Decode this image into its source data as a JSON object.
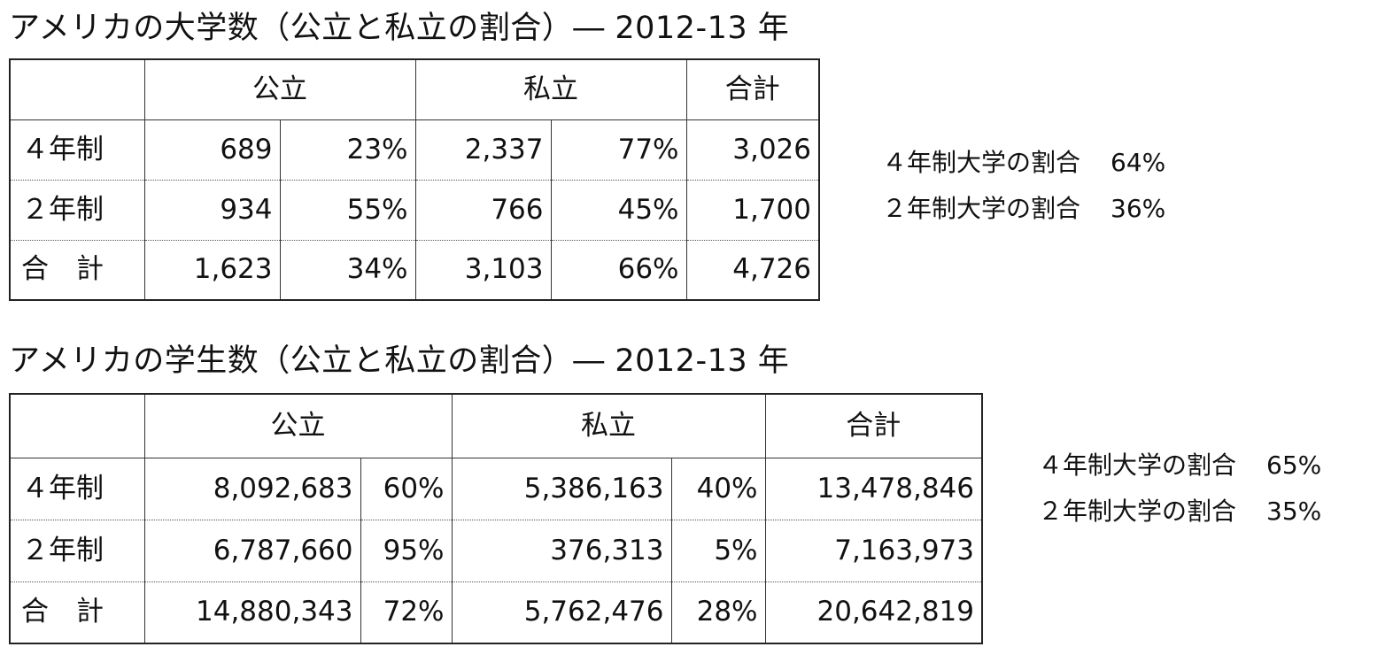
{
  "table1": {
    "title": "アメリカの大学数（公立と私立の割合）― 2012-13 年",
    "headers": {
      "public": "公立",
      "private": "私立",
      "total": "合計"
    },
    "rows": [
      {
        "label": "４年制",
        "public_count": "689",
        "public_pct": "23%",
        "private_count": "2,337",
        "private_pct": "77%",
        "total": "3,026"
      },
      {
        "label": "２年制",
        "public_count": "934",
        "public_pct": "55%",
        "private_count": "766",
        "private_pct": "45%",
        "total": "1,700"
      },
      {
        "label": "合　計",
        "public_count": "1,623",
        "public_pct": "34%",
        "private_count": "3,103",
        "private_pct": "66%",
        "total": "4,726"
      }
    ],
    "side": [
      {
        "label": "４年制大学の割合",
        "value": "64%"
      },
      {
        "label": "２年制大学の割合",
        "value": "36%"
      }
    ]
  },
  "table2": {
    "title": "アメリカの学生数（公立と私立の割合）― 2012-13 年",
    "headers": {
      "public": "公立",
      "private": "私立",
      "total": "合計"
    },
    "rows": [
      {
        "label": "４年制",
        "public_count": "8,092,683",
        "public_pct": "60%",
        "private_count": "5,386,163",
        "private_pct": "40%",
        "total": "13,478,846"
      },
      {
        "label": "２年制",
        "public_count": "6,787,660",
        "public_pct": "95%",
        "private_count": "376,313",
        "private_pct": "5%",
        "total": "7,163,973"
      },
      {
        "label": "合　計",
        "public_count": "14,880,343",
        "public_pct": "72%",
        "private_count": "5,762,476",
        "private_pct": "28%",
        "total": "20,642,819"
      }
    ],
    "side": [
      {
        "label": "４年制大学の割合",
        "value": "65%"
      },
      {
        "label": "２年制大学の割合",
        "value": "35%"
      }
    ]
  }
}
